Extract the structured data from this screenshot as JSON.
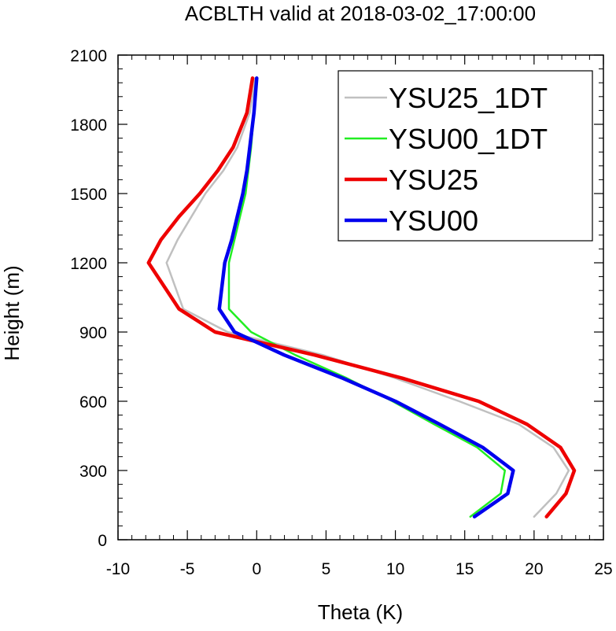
{
  "chart_data": {
    "type": "line",
    "title": "ACBLTH valid at 2018-03-02_17:00:00",
    "xlabel": "Theta (K)",
    "ylabel": "Height (m)",
    "xlim": [
      -10,
      25
    ],
    "ylim": [
      0,
      2100
    ],
    "xticks": [
      -10,
      -5,
      0,
      5,
      10,
      15,
      20,
      25
    ],
    "yticks": [
      0,
      300,
      600,
      900,
      1200,
      1500,
      1800,
      2100
    ],
    "grid": false,
    "legend_position": "top-right",
    "series": [
      {
        "name": "YSU25_1DT",
        "color": "#c0c0c0",
        "line_width": "thin",
        "points": [
          [
            20.0,
            100
          ],
          [
            21.6,
            200
          ],
          [
            22.5,
            300
          ],
          [
            21.4,
            400
          ],
          [
            18.9,
            500
          ],
          [
            14.6,
            600
          ],
          [
            10.0,
            700
          ],
          [
            4.8,
            800
          ],
          [
            -2.1,
            900
          ],
          [
            -5.3,
            1000
          ],
          [
            -6.5,
            1200
          ],
          [
            -5.7,
            1300
          ],
          [
            -4.7,
            1400
          ],
          [
            -3.7,
            1500
          ],
          [
            -2.4,
            1600
          ],
          [
            -1.4,
            1700
          ],
          [
            -0.5,
            1850
          ],
          [
            -0.1,
            2000
          ]
        ]
      },
      {
        "name": "YSU00_1DT",
        "color": "#22ee22",
        "line_width": "thin",
        "points": [
          [
            15.4,
            100
          ],
          [
            17.6,
            200
          ],
          [
            17.9,
            300
          ],
          [
            15.9,
            400
          ],
          [
            12.8,
            500
          ],
          [
            9.8,
            600
          ],
          [
            6.5,
            700
          ],
          [
            2.8,
            800
          ],
          [
            -0.4,
            900
          ],
          [
            -2.0,
            1000
          ],
          [
            -2.0,
            1200
          ],
          [
            -1.6,
            1300
          ],
          [
            -1.2,
            1400
          ],
          [
            -0.8,
            1500
          ],
          [
            -0.6,
            1600
          ],
          [
            -0.4,
            1700
          ],
          [
            -0.2,
            1850
          ],
          [
            0.0,
            2000
          ]
        ]
      },
      {
        "name": "YSU25",
        "color": "#ee0000",
        "line_width": "thick",
        "points": [
          [
            20.9,
            100
          ],
          [
            22.3,
            200
          ],
          [
            22.9,
            300
          ],
          [
            21.9,
            400
          ],
          [
            19.5,
            500
          ],
          [
            16.0,
            600
          ],
          [
            10.5,
            700
          ],
          [
            4.2,
            800
          ],
          [
            -3.0,
            900
          ],
          [
            -5.6,
            1000
          ],
          [
            -7.8,
            1200
          ],
          [
            -6.9,
            1300
          ],
          [
            -5.6,
            1400
          ],
          [
            -4.1,
            1500
          ],
          [
            -2.8,
            1600
          ],
          [
            -1.7,
            1700
          ],
          [
            -0.7,
            1850
          ],
          [
            -0.3,
            2000
          ]
        ]
      },
      {
        "name": "YSU00",
        "color": "#0000ee",
        "line_width": "thick",
        "points": [
          [
            15.7,
            100
          ],
          [
            18.1,
            200
          ],
          [
            18.5,
            300
          ],
          [
            16.3,
            400
          ],
          [
            13.2,
            500
          ],
          [
            10.0,
            600
          ],
          [
            6.2,
            700
          ],
          [
            2.0,
            800
          ],
          [
            -1.6,
            900
          ],
          [
            -2.7,
            1000
          ],
          [
            -2.3,
            1200
          ],
          [
            -1.8,
            1300
          ],
          [
            -1.4,
            1400
          ],
          [
            -1.0,
            1500
          ],
          [
            -0.7,
            1600
          ],
          [
            -0.5,
            1700
          ],
          [
            -0.2,
            1850
          ],
          [
            0.0,
            2000
          ]
        ]
      }
    ]
  }
}
